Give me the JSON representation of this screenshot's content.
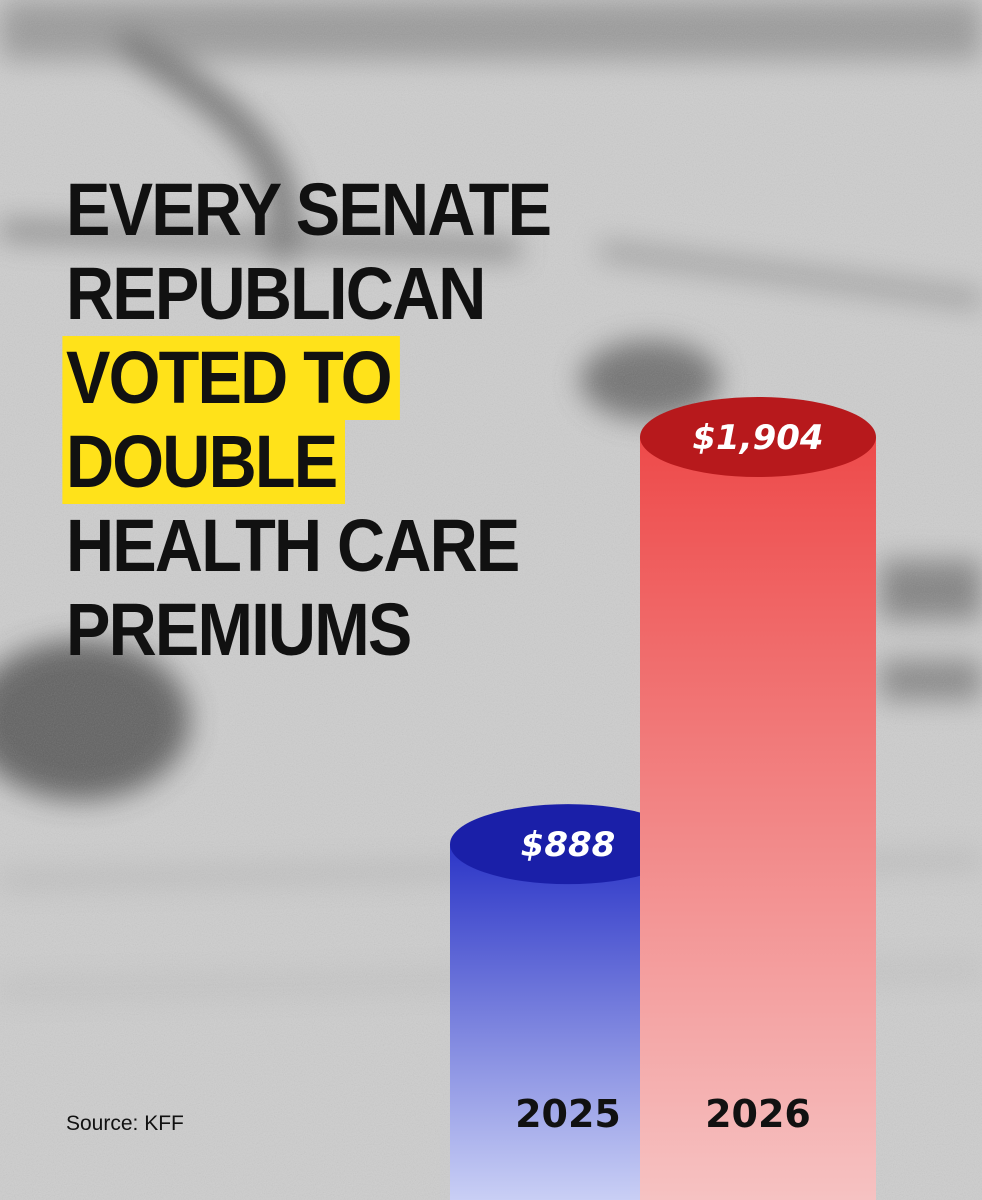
{
  "headline": {
    "lines": [
      "EVERY SENATE",
      "REPUBLICAN",
      "VOTED TO",
      "DOUBLE",
      "HEALTH CARE",
      "PREMIUMS"
    ],
    "highlight_color": "#ffe21a"
  },
  "source": "Source: KFF",
  "chart_data": {
    "type": "bar",
    "categories": [
      "2025",
      "2026"
    ],
    "values": [
      888,
      1904
    ],
    "value_labels": [
      "$888",
      "$1,904"
    ],
    "colors": [
      "#2b35c7",
      "#ee4a4a"
    ],
    "cap_colors": [
      "#1a1fa8",
      "#b7191c"
    ],
    "ylim": [
      0,
      2300
    ],
    "grid": false,
    "legend": "none"
  }
}
